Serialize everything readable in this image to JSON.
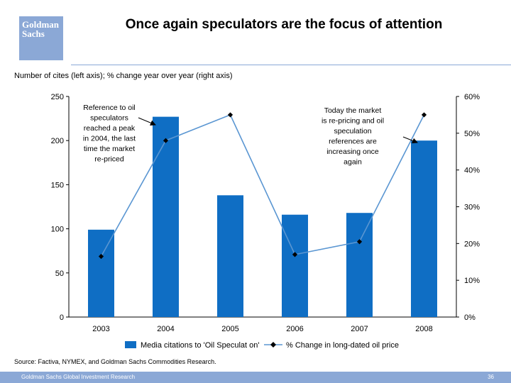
{
  "header": {
    "logo_line1": "Goldman",
    "logo_line2": "Sachs",
    "title": "Once again speculators are the focus of attention"
  },
  "subtitle": "Number of cites (left axis); % change year over year (right axis)",
  "source": "Source: Factiva, NYMEX, and Goldman Sachs Commodities Research.",
  "footer": {
    "text": "Goldman Sachs Global Investment Research",
    "page": "36"
  },
  "colors": {
    "bar": "#0f6ec4",
    "line": "#5a96d2",
    "marker": "#000000",
    "brand": "#8ba8d6"
  },
  "chart_data": {
    "type": "bar",
    "categories": [
      "2003",
      "2004",
      "2005",
      "2006",
      "2007",
      "2008"
    ],
    "series": [
      {
        "name": "Media citations to 'Oil Speculation'",
        "type": "bar",
        "axis": "left",
        "values": [
          99,
          227,
          138,
          116,
          118,
          200
        ]
      },
      {
        "name": "% Change in long-dated oil price",
        "type": "line",
        "axis": "right",
        "values": [
          16.5,
          48,
          55,
          17,
          20.5,
          55
        ]
      }
    ],
    "left_axis": {
      "min": 0,
      "max": 250,
      "ticks": [
        "0",
        "50",
        "100",
        "150",
        "200",
        "250"
      ]
    },
    "right_axis": {
      "min": 0,
      "max": 60,
      "ticks": [
        "0%",
        "10%",
        "20%",
        "30%",
        "40%",
        "50%",
        "60%"
      ]
    },
    "annotations": [
      {
        "id": "left-note",
        "lines": [
          "Reference to oil",
          "speculators",
          "reached a peak",
          "in 2004, the last",
          "time the market",
          "re-priced"
        ]
      },
      {
        "id": "right-note",
        "lines": [
          "Today the market",
          "is re-pricing and oil",
          "speculation",
          "references are",
          "increasing once",
          "again"
        ]
      }
    ],
    "legend": {
      "position": "bottom",
      "bar_label": "Media citations to 'Oil Speculat on'",
      "line_label": "% Change in long-dated oil price"
    }
  }
}
